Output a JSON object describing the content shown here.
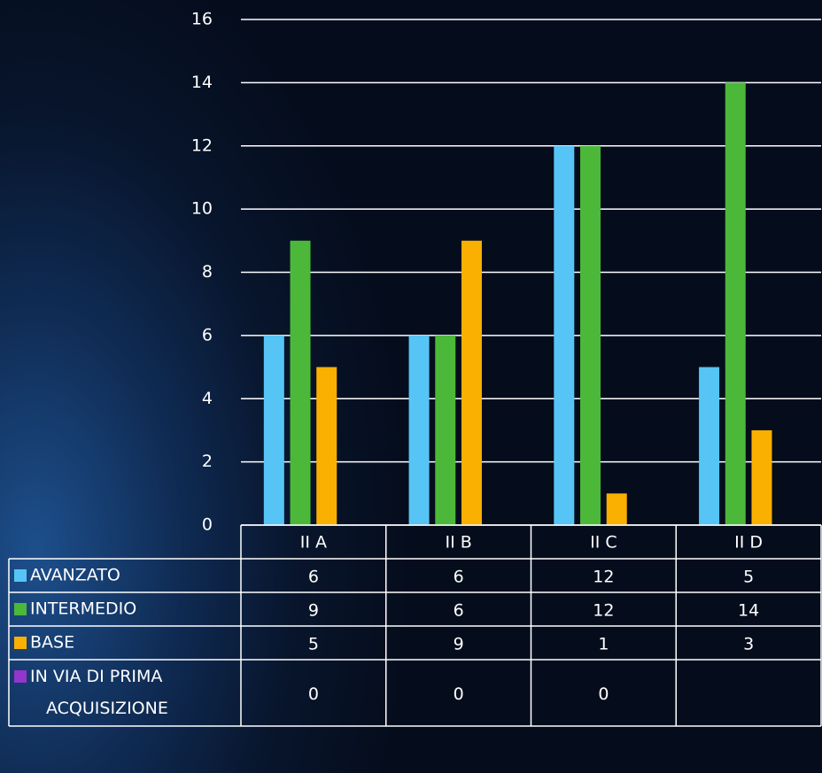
{
  "chart_data": {
    "type": "bar",
    "categories": [
      "II A",
      "II B",
      "II C",
      "II D"
    ],
    "series": [
      {
        "name": "AVANZATO",
        "color": "#56c5f5",
        "values": [
          6,
          6,
          12,
          5
        ]
      },
      {
        "name": "INTERMEDIO",
        "color": "#4cb83a",
        "values": [
          9,
          6,
          12,
          14
        ]
      },
      {
        "name": "BASE",
        "color": "#f9b000",
        "values": [
          5,
          9,
          1,
          3
        ]
      },
      {
        "name": "IN VIA DI PRIMA ACQUISIZIONE",
        "color": "#9236cc",
        "values": [
          0,
          0,
          0,
          null
        ]
      }
    ],
    "ylim": [
      0,
      16
    ],
    "yticks": [
      0,
      2,
      4,
      6,
      8,
      10,
      12,
      14,
      16
    ],
    "grid": true,
    "data_table": true
  }
}
